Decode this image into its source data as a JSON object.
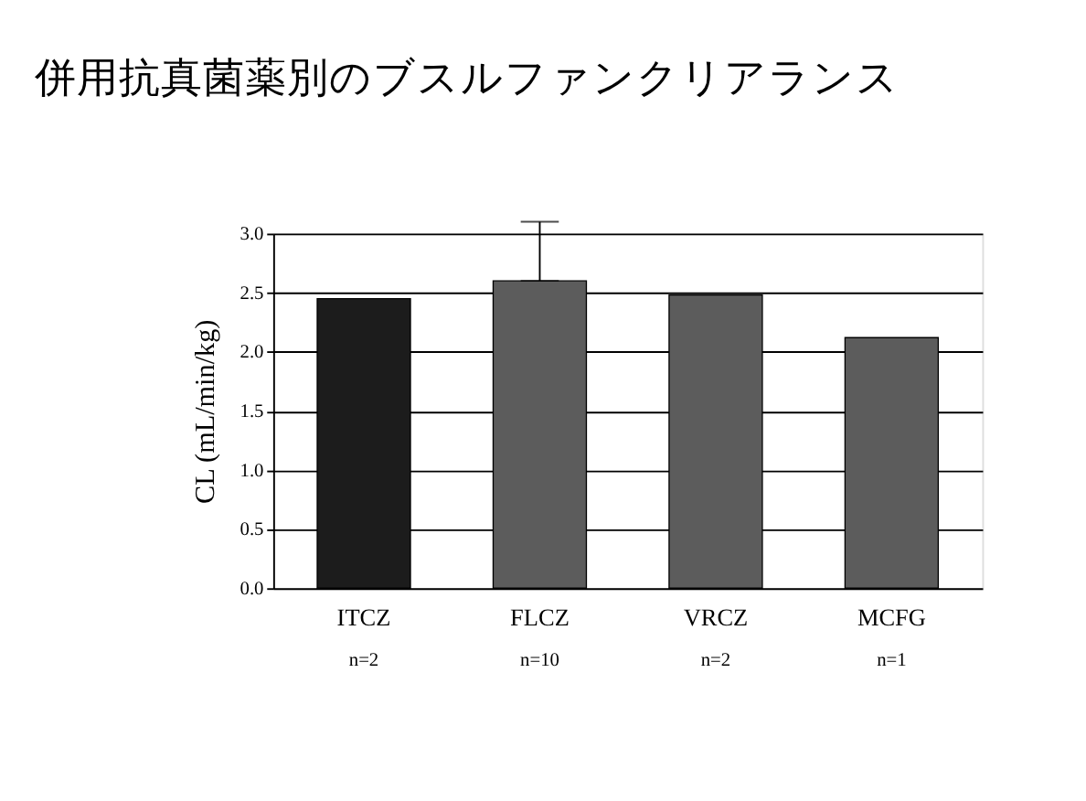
{
  "chart_data": {
    "type": "bar",
    "title": "併用抗真菌薬別のブスルファンクリアランス",
    "ylabel": "CL (mL/min/kg)",
    "categories": [
      "ITCZ",
      "FLCZ",
      "VRCZ",
      "MCFG"
    ],
    "values": [
      2.45,
      2.6,
      2.48,
      2.12
    ],
    "colors": [
      "#1c1c1c",
      "#5c5c5c",
      "#5c5c5c",
      "#5c5c5c"
    ],
    "errors": [
      null,
      [
        2.6,
        3.1
      ],
      null,
      null
    ],
    "annotations": [
      "n=2",
      "n=10",
      "n=2",
      "n=1"
    ],
    "ylim": [
      0,
      3.0
    ],
    "yticks": [
      {
        "value": 0,
        "label": "0.0"
      },
      {
        "value": 0.5,
        "label": "0.5"
      },
      {
        "value": 1,
        "label": "1.0"
      },
      {
        "value": 1.5,
        "label": "1.5"
      },
      {
        "value": 2,
        "label": "2.0"
      },
      {
        "value": 2.5,
        "label": "2.5"
      },
      {
        "value": 3,
        "label": "3.0"
      }
    ],
    "grid": "y"
  }
}
